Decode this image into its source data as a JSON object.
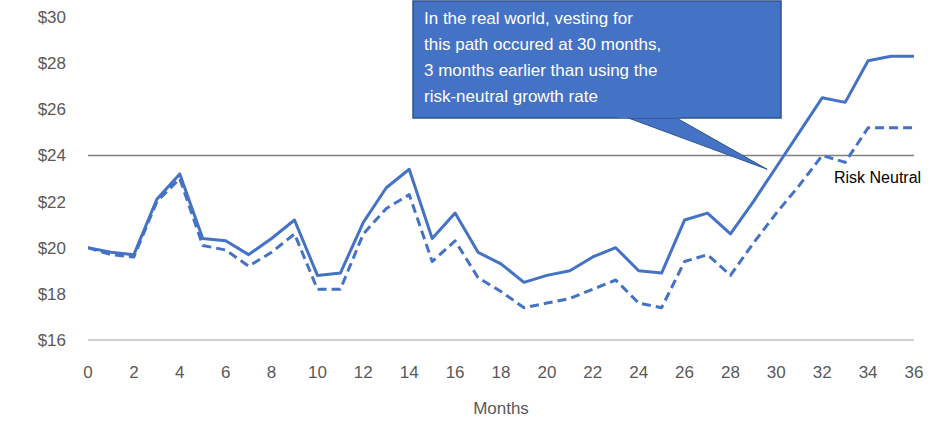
{
  "chart_data": {
    "type": "line",
    "x_label": "Months",
    "x": [
      0,
      1,
      2,
      3,
      4,
      5,
      6,
      7,
      8,
      9,
      10,
      11,
      12,
      13,
      14,
      15,
      16,
      17,
      18,
      19,
      20,
      21,
      22,
      23,
      24,
      25,
      26,
      27,
      28,
      29,
      30,
      31,
      32,
      33,
      34,
      35,
      36
    ],
    "xlim": [
      0,
      36
    ],
    "xticks": [
      0,
      2,
      4,
      6,
      8,
      10,
      12,
      14,
      16,
      18,
      20,
      22,
      24,
      26,
      28,
      30,
      32,
      34,
      36
    ],
    "ylim": [
      16,
      30
    ],
    "yticks": [
      {
        "value": 16,
        "label": "$16"
      },
      {
        "value": 18,
        "label": "$18"
      },
      {
        "value": 20,
        "label": "$20"
      },
      {
        "value": 22,
        "label": "$22"
      },
      {
        "value": 24,
        "label": "$24"
      },
      {
        "value": 26,
        "label": "$26"
      },
      {
        "value": 28,
        "label": "$28"
      },
      {
        "value": 30,
        "label": "$30"
      }
    ],
    "grid": false,
    "hline": {
      "value": 24,
      "color": "#808080"
    },
    "series": [
      {
        "color": "#4472c4",
        "line_style": "solid",
        "values": [
          20.0,
          19.8,
          19.7,
          22.1,
          23.2,
          20.4,
          20.3,
          19.7,
          20.4,
          21.2,
          18.8,
          18.9,
          21.1,
          22.6,
          23.4,
          20.4,
          21.5,
          19.8,
          19.3,
          18.5,
          18.8,
          19.0,
          19.6,
          20.0,
          19.0,
          18.9,
          21.2,
          21.5,
          20.6,
          22.0,
          23.5,
          25.0,
          26.5,
          26.3,
          28.1,
          28.3,
          28.3
        ]
      },
      {
        "name": "Risk Neutral",
        "color": "#4472c4",
        "line_style": "dashed",
        "values": [
          20.0,
          19.7,
          19.6,
          22.0,
          23.0,
          20.1,
          19.9,
          19.2,
          19.8,
          20.6,
          18.2,
          18.2,
          20.6,
          21.7,
          22.3,
          19.4,
          20.3,
          18.7,
          18.1,
          17.4,
          17.6,
          17.8,
          18.2,
          18.6,
          17.6,
          17.4,
          19.4,
          19.7,
          18.8,
          20.2,
          21.5,
          22.7,
          24.0,
          23.7,
          25.2,
          25.2,
          25.2
        ]
      }
    ],
    "annotation": {
      "text": [
        "In the real world, vesting for",
        "this path occured at 30 months,",
        "3 months earlier than using the",
        "risk-neutral growth rate"
      ],
      "x": 29.6,
      "y": 23.4,
      "color": "#4472c4"
    }
  }
}
